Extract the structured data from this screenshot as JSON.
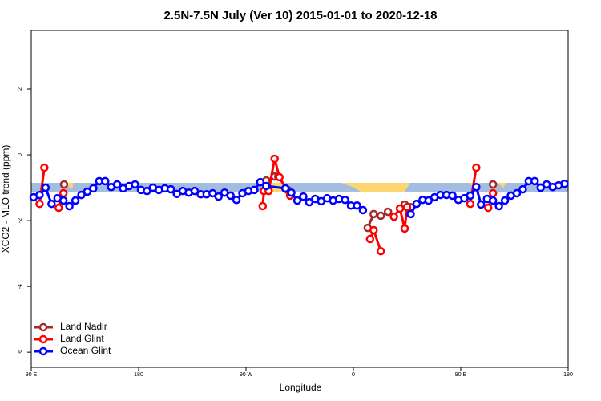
{
  "chart_data": {
    "type": "line",
    "title": "2.5N-7.5N July (Ver 10)   2015-01-01 to 2020-12-18",
    "x_label": "Longitude",
    "y_label": "XCO2 - MLO trend (ppm)",
    "xlim": [
      90,
      540
    ],
    "xticks": [
      {
        "value": 90,
        "label": "90 E"
      },
      {
        "value": 180,
        "label": "180"
      },
      {
        "value": 270,
        "label": "90 W"
      },
      {
        "value": 360,
        "label": "0"
      },
      {
        "value": 450,
        "label": "90 E"
      },
      {
        "value": 540,
        "label": "180"
      }
    ],
    "ylim": [
      -6.46,
      3.78
    ],
    "yticks": [
      -6,
      -4,
      -2,
      0,
      2
    ],
    "legend": "bottom-left",
    "series": [
      {
        "name": "Land Nadir",
        "color": "#a52a2a",
        "x": [
          117.5,
          200,
          287,
          294,
          297,
          305,
          340,
          372,
          377,
          383,
          389,
          396,
          403,
          408,
          440,
          477
        ],
        "values": [
          -0.9,
          null,
          -0.78,
          -0.66,
          -0.66,
          -1.07,
          null,
          -2.22,
          -1.8,
          -1.85,
          -1.73,
          null,
          -1.51,
          -1.59,
          null,
          -0.9
        ]
      },
      {
        "name": "Land Glint",
        "color": "#ff0000",
        "x": [
          97,
          101,
          107,
          113,
          117,
          200,
          284,
          285,
          289,
          294,
          298,
          307,
          340,
          374,
          377,
          383,
          388,
          394,
          399,
          403,
          405,
          430,
          458,
          463,
          468,
          473,
          477
        ],
        "values": [
          -1.49,
          -0.39,
          null,
          -1.61,
          -1.17,
          null,
          -1.56,
          -1.1,
          -1.1,
          -0.12,
          -0.68,
          -1.24,
          null,
          -2.56,
          -2.29,
          -2.93,
          null,
          -1.88,
          -1.63,
          -2.24,
          -1.59,
          null,
          -1.49,
          -0.39,
          null,
          -1.61,
          -1.17
        ]
      },
      {
        "name": "Ocean Glint",
        "color": "#0000ff",
        "x": [
          92,
          97,
          102,
          107,
          112,
          117,
          122,
          127,
          132,
          137,
          142,
          147,
          152,
          157,
          162,
          167,
          172,
          177,
          182,
          187,
          192,
          197,
          202,
          207,
          212,
          217,
          222,
          227,
          232,
          237,
          242,
          247,
          252,
          257,
          262,
          267,
          272,
          277,
          282,
          287,
          303,
          308,
          313,
          318,
          323,
          328,
          333,
          338,
          343,
          348,
          353,
          358,
          363,
          368,
          388,
          408,
          413,
          418,
          423,
          428,
          433,
          438,
          443,
          448,
          453,
          458,
          463,
          467,
          472,
          477,
          482,
          487,
          492,
          497,
          502,
          507,
          512,
          517,
          522,
          527,
          532,
          537
        ],
        "values": [
          -1.29,
          -1.22,
          -1.0,
          -1.49,
          -1.32,
          -1.39,
          -1.56,
          -1.39,
          -1.22,
          -1.12,
          -1.02,
          -0.8,
          -0.8,
          -0.98,
          -0.9,
          -1.02,
          -0.95,
          -0.9,
          -1.07,
          -1.1,
          -1.0,
          -1.07,
          -1.02,
          -1.05,
          -1.19,
          -1.1,
          -1.15,
          -1.1,
          -1.2,
          -1.2,
          -1.17,
          -1.27,
          -1.15,
          -1.24,
          -1.37,
          -1.17,
          -1.1,
          -1.07,
          -0.83,
          -0.95,
          -1.02,
          -1.15,
          -1.39,
          -1.27,
          -1.44,
          -1.34,
          -1.41,
          -1.32,
          -1.39,
          -1.34,
          -1.37,
          -1.54,
          -1.54,
          -1.68,
          null,
          -1.8,
          -1.49,
          -1.37,
          -1.39,
          -1.29,
          -1.22,
          -1.22,
          -1.24,
          -1.37,
          -1.32,
          -1.24,
          -0.98,
          -1.51,
          -1.34,
          -1.39,
          -1.56,
          -1.39,
          -1.24,
          -1.17,
          -1.05,
          -0.8,
          -0.8,
          -1.0,
          -0.9,
          -0.98,
          -0.93,
          -0.88
        ]
      }
    ]
  }
}
